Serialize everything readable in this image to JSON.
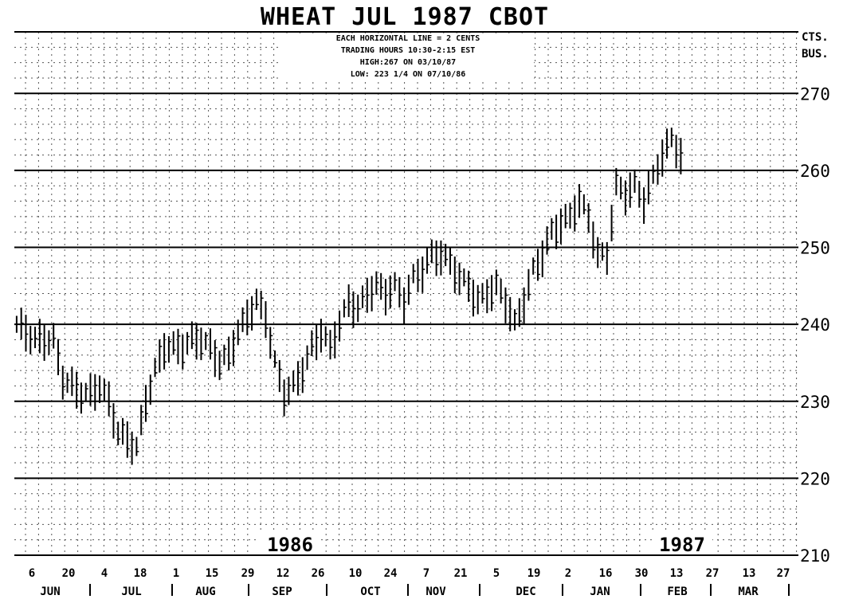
{
  "chart_data": {
    "type": "bar",
    "title": "WHEAT JUL 1987 CBOT",
    "notes": [
      "EACH HORIZONTAL LINE = 2 CENTS",
      "TRADING HOURS   10:30-2:15 EST",
      "HIGH:267        ON 03/10/87",
      "LOW: 223 1/4 ON 07/10/86"
    ],
    "ylabel": [
      "CTS.",
      "BUS."
    ],
    "yticks": [
      "210",
      "220",
      "230",
      "240",
      "250",
      "260",
      "270"
    ],
    "ylim": [
      210,
      278
    ],
    "xticks": [
      "6",
      "20",
      "4",
      "18",
      "1",
      "15",
      "29",
      "12",
      "26",
      "10",
      "24",
      "7",
      "21",
      "5",
      "19",
      "2",
      "16",
      "30",
      "13",
      "27",
      "13",
      "27"
    ],
    "months": [
      "JUN",
      "JUL",
      "AUG",
      "SEP",
      "OCT",
      "NOV",
      "DEC",
      "JAN",
      "FEB",
      "MAR"
    ],
    "year_labels": [
      "1986",
      "1987"
    ],
    "grid": true,
    "price_path": [
      [
        0,
        240
      ],
      [
        4,
        238
      ],
      [
        8,
        238
      ],
      [
        10,
        233
      ],
      [
        14,
        231
      ],
      [
        16,
        231
      ],
      [
        18,
        232
      ],
      [
        20,
        230
      ],
      [
        22,
        226
      ],
      [
        26,
        224
      ],
      [
        28,
        230
      ],
      [
        30,
        234
      ],
      [
        32,
        237
      ],
      [
        34,
        237
      ],
      [
        36,
        237
      ],
      [
        38,
        238
      ],
      [
        40,
        238
      ],
      [
        42,
        237
      ],
      [
        44,
        235
      ],
      [
        46,
        236
      ],
      [
        48,
        239
      ],
      [
        50,
        241
      ],
      [
        52,
        243
      ],
      [
        54,
        241
      ],
      [
        56,
        235
      ],
      [
        58,
        231
      ],
      [
        60,
        232
      ],
      [
        62,
        234
      ],
      [
        64,
        237
      ],
      [
        66,
        239
      ],
      [
        68,
        237
      ],
      [
        70,
        240
      ],
      [
        72,
        243
      ],
      [
        74,
        242
      ],
      [
        76,
        244
      ],
      [
        78,
        245
      ],
      [
        80,
        244
      ],
      [
        82,
        245
      ],
      [
        84,
        243
      ],
      [
        86,
        246
      ],
      [
        88,
        247
      ],
      [
        90,
        249
      ],
      [
        92,
        249
      ],
      [
        94,
        248
      ],
      [
        96,
        246
      ],
      [
        98,
        245
      ],
      [
        100,
        243
      ],
      [
        102,
        244
      ],
      [
        104,
        245
      ],
      [
        106,
        243
      ],
      [
        108,
        240
      ],
      [
        110,
        243
      ],
      [
        112,
        247
      ],
      [
        114,
        249
      ],
      [
        116,
        252
      ],
      [
        118,
        253
      ],
      [
        120,
        254
      ],
      [
        122,
        256
      ],
      [
        124,
        254
      ],
      [
        126,
        249
      ],
      [
        128,
        249
      ],
      [
        130,
        258
      ],
      [
        132,
        257
      ],
      [
        134,
        258
      ],
      [
        136,
        256
      ],
      [
        138,
        259
      ],
      [
        140,
        262
      ],
      [
        142,
        264
      ],
      [
        144,
        262
      ]
    ]
  }
}
